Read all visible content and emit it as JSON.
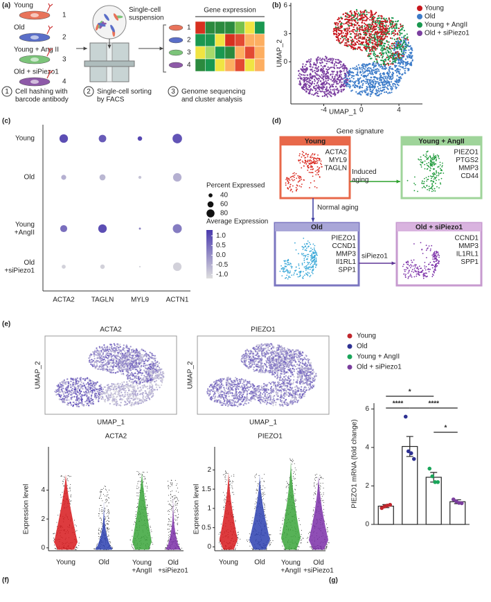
{
  "panel_labels": [
    "(a)",
    "(b)",
    "(c)",
    "(d)",
    "(e)",
    "(f)",
    "(g)"
  ],
  "workflow": {
    "groups": [
      {
        "label": "Young",
        "number": "1"
      },
      {
        "label": "Old",
        "number": "2"
      },
      {
        "label": "Young + Ang II",
        "number": "3"
      },
      {
        "label": "Old + siPiezo1",
        "number": "4"
      }
    ],
    "suspension": "Single-cell\nsuspension",
    "heatmap_title": "Gene expression",
    "heatmap_rows": [
      "1",
      "2",
      "3",
      "4"
    ],
    "steps": [
      {
        "number": "1",
        "text": "Cell hashing with\nbarcode antibody"
      },
      {
        "number": "2",
        "text": "Single-cell sorting\nby FACS"
      },
      {
        "number": "3",
        "text": "Genome sequencing\nand cluster analysis"
      }
    ]
  },
  "gene_signature": {
    "title": "Gene signature",
    "boxes": [
      {
        "title": "Young",
        "genes": [
          "ACTA2",
          "MYL9",
          "TAGLN"
        ]
      },
      {
        "title": "Young + AngII",
        "genes": [
          "PIEZO1",
          "PTGS2",
          "MMP3",
          "CD44"
        ]
      },
      {
        "title": "Old",
        "genes": [
          "PIEZO1",
          "CCND1",
          "MMP3",
          "Il1RL1",
          "SPP1"
        ]
      },
      {
        "title": "Old + siPiezo1",
        "genes": [
          "CCND1",
          "MMP3",
          "IL1RL1",
          "SPP1"
        ]
      }
    ],
    "arrows": [
      "Induced\naging",
      "Normal aging",
      "siPiezo1"
    ]
  },
  "feature_plots": [
    {
      "title": "ACTA2",
      "xlabel": "UMAP_1",
      "ylabel": "UMAP_2"
    },
    {
      "title": "PIEZO1",
      "xlabel": "UMAP_1",
      "ylabel": "UMAP_2"
    }
  ],
  "chart_data": [
    {
      "type": "scatter",
      "xlabel": "UMAP_1",
      "ylabel": "UMAP_2",
      "xlim": [
        -7.5,
        6.5
      ],
      "ylim": [
        -4.5,
        6.3
      ],
      "xticks": [
        -4,
        0,
        4
      ],
      "yticks": [
        0,
        3,
        6
      ],
      "legend": "top-right",
      "series": [
        {
          "name": "Young",
          "color": "#c8161d"
        },
        {
          "name": "Old",
          "color": "#3d7cc9"
        },
        {
          "name": "Young + AngII",
          "color": "#1a9850"
        },
        {
          "name": "Old + siPiezo1",
          "color": "#7b3fa0"
        }
      ]
    },
    {
      "type": "dot",
      "categories": [
        "ACTA2",
        "TAGLN",
        "MYL9",
        "ACTN1"
      ],
      "series": [
        {
          "name": "Young",
          "values": [
            1.0,
            0.8,
            1.1,
            0.9
          ],
          "sizes": [
            85,
            75,
            45,
            95
          ]
        },
        {
          "name": "Old",
          "values": [
            -0.5,
            -0.6,
            -0.8,
            -0.5
          ],
          "sizes": [
            50,
            60,
            30,
            85
          ]
        },
        {
          "name": "Young\n+AngII",
          "values": [
            0.5,
            1.0,
            0.2,
            0.3
          ],
          "sizes": [
            70,
            85,
            20,
            90
          ]
        },
        {
          "name": "Old\n+siPiezo1",
          "values": [
            -1.0,
            -1.0,
            -1.0,
            -1.0
          ],
          "sizes": [
            40,
            45,
            15,
            85
          ]
        }
      ],
      "size_legend": {
        "title": "Percent Expressed",
        "values": [
          40,
          60,
          80
        ]
      },
      "color_legend": {
        "title": "Average Expression",
        "lim": [
          -1.2,
          1.3
        ],
        "colors": [
          "#dedede",
          "#4a3aae"
        ],
        "ticks": [
          {
            "value": 1.0,
            "label": "1.0"
          },
          0.5,
          {
            "value": 0.0,
            "label": "0.0"
          },
          -0.5,
          {
            "value": -1.0,
            "label": "-1.0"
          }
        ]
      }
    },
    {
      "type": "violin",
      "title": "ACTA2",
      "ylabel": "Expression level",
      "categories": [
        "Young",
        "Old",
        "Young\n+AngII",
        "Old\n+siPiezo1"
      ],
      "colors": [
        "#d7191c",
        "#2c3fb0",
        "#3aa53a",
        "#7b2fa8"
      ],
      "values": [
        5.1,
        4.3,
        5.3,
        4.7
      ],
      "ylim": [
        -0.2,
        7
      ],
      "yticks": [
        0,
        2,
        4
      ]
    },
    {
      "type": "violin",
      "title": "PIEZO1",
      "ylabel": "Expression level",
      "categories": [
        "Young",
        "Old",
        "Young\n+AngII",
        "Old\n+siPiezo1"
      ],
      "colors": [
        "#d7191c",
        "#2c3fb0",
        "#3aa53a",
        "#7b2fa8"
      ],
      "values": [
        2.0,
        1.9,
        2.3,
        1.9
      ],
      "ylim": [
        -0.1,
        2.6
      ],
      "yticks": [
        0,
        0.5,
        1,
        1.5,
        2
      ]
    },
    {
      "type": "bar",
      "ylabel": "PIEZO1 mRNA (fold change)",
      "legend": "top-left",
      "categories": [
        "Young",
        "Old",
        "Young + AngII",
        "Old + siPiezo1"
      ],
      "colors": [
        "#c0272d",
        "#2e3192",
        "#1aa55a",
        "#7a3e9d"
      ],
      "values": [
        0.95,
        4.05,
        2.45,
        1.18
      ],
      "errors": [
        0.08,
        0.52,
        0.25,
        0.1
      ],
      "points": [
        [
          0.85,
          0.93,
          0.98,
          1.02
        ],
        [
          5.6,
          3.8,
          3.7,
          3.4
        ],
        [
          2.9,
          2.5,
          2.2,
          2.2
        ],
        [
          1.3,
          1.2,
          1.12,
          1.1
        ]
      ],
      "ylim": [
        0,
        6.3
      ],
      "yticks": [
        0,
        2,
        4,
        6
      ],
      "annotations": [
        {
          "from": 0,
          "to": 2,
          "label": "*"
        },
        {
          "from": 0,
          "to": 1,
          "label": "****"
        },
        {
          "from": 1,
          "to": 3,
          "label": "****"
        },
        {
          "from": 2,
          "to": 3,
          "label": "*"
        }
      ]
    }
  ]
}
